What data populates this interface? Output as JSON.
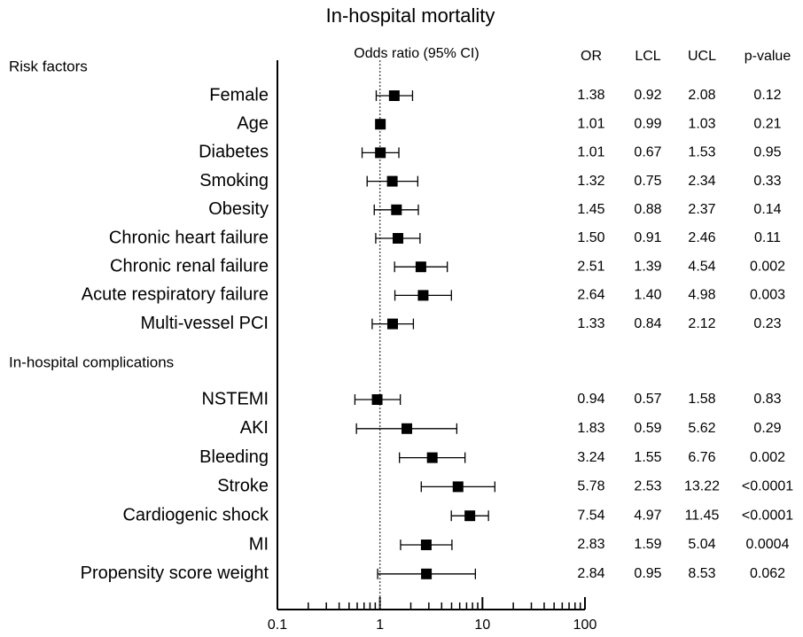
{
  "chart_data": {
    "type": "forest",
    "title": "In-hospital mortality",
    "x_label": "Odds ratio (95% CI)",
    "columns": [
      "OR",
      "LCL",
      "UCL",
      "p-value"
    ],
    "log_x": true,
    "xlim": [
      0.1,
      100
    ],
    "xticks": [
      0.1,
      1,
      10,
      100
    ],
    "reference": 1,
    "color": "#000000",
    "sections": [
      {
        "name": "Risk factors",
        "categories": [
          "Female",
          "Age",
          "Diabetes",
          "Smoking",
          "Obesity",
          "Chronic heart failure",
          "Chronic renal failure",
          "Acute respiratory failure",
          "Multi-vessel PCI"
        ],
        "values": [
          1.38,
          1.01,
          1.01,
          1.32,
          1.45,
          1.5,
          2.51,
          2.64,
          1.33
        ],
        "value_labels": [
          "1.38",
          "1.01",
          "1.01",
          "1.32",
          "1.45",
          "1.50",
          "2.51",
          "2.64",
          "1.33"
        ],
        "lower": [
          0.92,
          0.99,
          0.67,
          0.75,
          0.88,
          0.91,
          1.39,
          1.4,
          0.84
        ],
        "lower_labels": [
          "0.92",
          "0.99",
          "0.67",
          "0.75",
          "0.88",
          "0.91",
          "1.39",
          "1.40",
          "0.84"
        ],
        "upper": [
          2.08,
          1.03,
          1.53,
          2.34,
          2.37,
          2.46,
          4.54,
          4.98,
          2.12
        ],
        "upper_labels": [
          "2.08",
          "1.03",
          "1.53",
          "2.34",
          "2.37",
          "2.46",
          "4.54",
          "4.98",
          "2.12"
        ],
        "p_values": [
          "0.12",
          "0.21",
          "0.95",
          "0.33",
          "0.14",
          "0.11",
          "0.002",
          "0.003",
          "0.23"
        ]
      },
      {
        "name": "In-hospital complications",
        "categories": [
          "NSTEMI",
          "AKI",
          "Bleeding",
          "Stroke",
          "Cardiogenic shock",
          "MI",
          "Propensity score weight"
        ],
        "values": [
          0.94,
          1.83,
          3.24,
          5.78,
          7.54,
          2.83,
          2.84
        ],
        "value_labels": [
          "0.94",
          "1.83",
          "3.24",
          "5.78",
          "7.54",
          "2.83",
          "2.84"
        ],
        "lower": [
          0.57,
          0.59,
          1.55,
          2.53,
          4.97,
          1.59,
          0.95
        ],
        "lower_labels": [
          "0.57",
          "0.59",
          "1.55",
          "2.53",
          "4.97",
          "1.59",
          "0.95"
        ],
        "upper": [
          1.58,
          5.62,
          6.76,
          13.22,
          11.45,
          5.04,
          8.53
        ],
        "upper_labels": [
          "1.58",
          "5.62",
          "6.76",
          "13.22",
          "11.45",
          "5.04",
          "8.53"
        ],
        "p_values": [
          "0.83",
          "0.29",
          "0.002",
          "<0.0001",
          "<0.0001",
          "0.0004",
          "0.062"
        ]
      }
    ]
  }
}
